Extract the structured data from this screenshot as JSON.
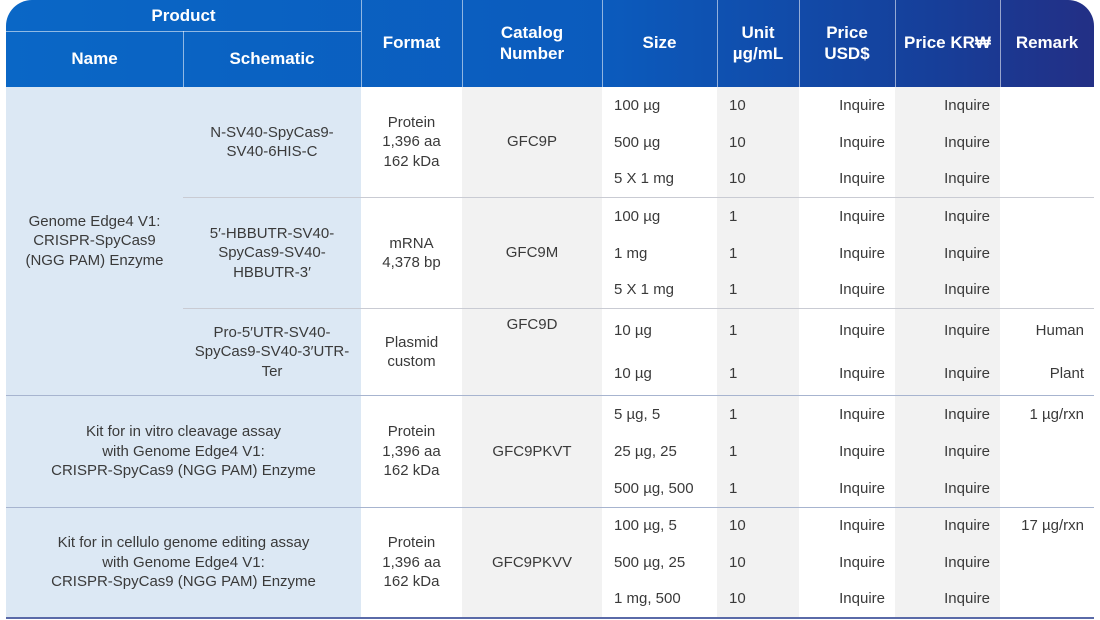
{
  "header": {
    "product": "Product",
    "name": "Name",
    "schematic": "Schematic",
    "format": "Format",
    "catalog_line1": "Catalog",
    "catalog_line2": "Number",
    "size": "Size",
    "unit_line1": "Unit",
    "unit_line2": "µg/mL",
    "price_usd_line1": "Price",
    "price_usd_line2": "USD$",
    "price_krw": "Price KR₩",
    "remark": "Remark"
  },
  "groups": [
    {
      "name": "Genome Edge4 V1:\nCRISPR-SpyCas9\n(NGG PAM) Enzyme",
      "products": [
        {
          "schematic": "N-SV40-SpyCas9-\nSV40-6HIS-C",
          "format": "Protein\n1,396 aa\n162 kDa",
          "catalog": "GFC9P",
          "rows": [
            {
              "size": "100 µg",
              "unit": "10",
              "usd": "Inquire",
              "krw": "Inquire",
              "remark": ""
            },
            {
              "size": "500 µg",
              "unit": "10",
              "usd": "Inquire",
              "krw": "Inquire",
              "remark": ""
            },
            {
              "size": "5 X 1 mg",
              "unit": "10",
              "usd": "Inquire",
              "krw": "Inquire",
              "remark": ""
            }
          ]
        },
        {
          "schematic": "5′-HBBUTR-SV40-\nSpyCas9-SV40-\nHBBUTR-3′",
          "format": "mRNA\n4,378 bp",
          "catalog": "GFC9M",
          "rows": [
            {
              "size": "100 µg",
              "unit": "1",
              "usd": "Inquire",
              "krw": "Inquire",
              "remark": ""
            },
            {
              "size": "1 mg",
              "unit": "1",
              "usd": "Inquire",
              "krw": "Inquire",
              "remark": ""
            },
            {
              "size": "5 X 1 mg",
              "unit": "1",
              "usd": "Inquire",
              "krw": "Inquire",
              "remark": ""
            }
          ]
        },
        {
          "schematic": "Pro-5′UTR-SV40-\nSpyCas9-SV40-3′UTR-\nTer",
          "format": "Plasmid\ncustom",
          "catalog": "GFC9D",
          "rows": [
            {
              "size": "10 µg",
              "unit": "1",
              "usd": "Inquire",
              "krw": "Inquire",
              "remark": "Human"
            },
            {
              "size": "10 µg",
              "unit": "1",
              "usd": "Inquire",
              "krw": "Inquire",
              "remark": "Plant"
            }
          ]
        }
      ]
    },
    {
      "name": "Kit for in vitro cleavage assay\nwith Genome Edge4 V1:\nCRISPR-SpyCas9 (NGG PAM) Enzyme",
      "format": "Protein\n1,396 aa\n162 kDa",
      "catalog": "GFC9PKVT",
      "rows": [
        {
          "size": "5 µg, 5",
          "unit": "1",
          "usd": "Inquire",
          "krw": "Inquire",
          "remark": "1 µg/rxn"
        },
        {
          "size": "25 µg, 25",
          "unit": "1",
          "usd": "Inquire",
          "krw": "Inquire",
          "remark": ""
        },
        {
          "size": "500 µg, 500",
          "unit": "1",
          "usd": "Inquire",
          "krw": "Inquire",
          "remark": ""
        }
      ]
    },
    {
      "name": "Kit for in cellulo genome editing assay\nwith Genome Edge4 V1:\nCRISPR-SpyCas9 (NGG PAM) Enzyme",
      "format": "Protein\n1,396 aa\n162 kDa",
      "catalog": "GFC9PKVV",
      "rows": [
        {
          "size": "100 µg, 5",
          "unit": "10",
          "usd": "Inquire",
          "krw": "Inquire",
          "remark": "17 µg/rxn"
        },
        {
          "size": "500 µg, 25",
          "unit": "10",
          "usd": "Inquire",
          "krw": "Inquire",
          "remark": ""
        },
        {
          "size": "1 mg, 500",
          "unit": "10",
          "usd": "Inquire",
          "krw": "Inquire",
          "remark": ""
        }
      ]
    }
  ],
  "colors": {
    "header_start": "#0a67c6",
    "header_end": "#232f85",
    "name_band": "#dce8f4",
    "alt_band": "#f2f2f2",
    "text": "#3a3a3a"
  }
}
